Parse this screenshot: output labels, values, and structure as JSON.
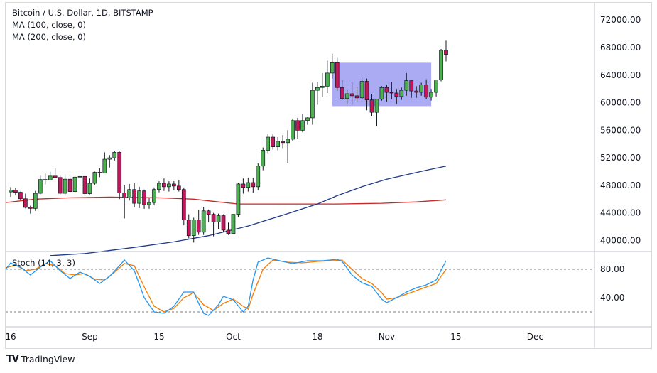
{
  "legend": {
    "title": "Bitcoin / U.S. Dollar, 1D, BITSTAMP",
    "ma100": "MA (100, close, 0)",
    "ma200": "MA (200, close, 0)"
  },
  "stoch_label": "Stoch (14, 3, 3)",
  "brand": {
    "name": "TradingView",
    "logo": "TV"
  },
  "colors": {
    "up": "#4caf50",
    "down": "#c2185b",
    "wick": "#131722",
    "ma100": "#1e3a8a",
    "ma200": "#c62828",
    "stoch_k": "#2196f3",
    "stoch_d": "#f57c00",
    "rect": "#9c9cf2"
  },
  "chart_data": {
    "type": "candlestick",
    "title": "Bitcoin / U.S. Dollar, 1D, BITSTAMP",
    "price_ticks": [
      "72000.00",
      "68000.00",
      "64000.00",
      "60000.00",
      "56000.00",
      "52000.00",
      "48000.00",
      "44000.00",
      "40000.00"
    ],
    "price_tick_values": [
      72000,
      68000,
      64000,
      60000,
      56000,
      52000,
      48000,
      44000,
      40000
    ],
    "ylim": [
      38500,
      74500
    ],
    "time_ticks": [
      {
        "label": "16",
        "day": 0
      },
      {
        "label": "Sep",
        "day": 16
      },
      {
        "label": "15",
        "day": 30
      },
      {
        "label": "Oct",
        "day": 45
      },
      {
        "label": "18",
        "day": 62
      },
      {
        "label": "Nov",
        "day": 76
      },
      {
        "label": "15",
        "day": 90
      },
      {
        "label": "Dec",
        "day": 106
      }
    ],
    "xlim": [
      -1,
      118
    ],
    "candles": [
      [
        47050,
        47750,
        46350,
        47300
      ],
      [
        47300,
        47600,
        46550,
        47000
      ],
      [
        47000,
        47100,
        45850,
        46050
      ],
      [
        46050,
        46800,
        44650,
        44800
      ],
      [
        44800,
        45050,
        43900,
        44650
      ],
      [
        44650,
        47200,
        44300,
        46850
      ],
      [
        46850,
        49400,
        46700,
        48850
      ],
      [
        48850,
        49700,
        48150,
        48800
      ],
      [
        48800,
        50000,
        48700,
        49350
      ],
      [
        49350,
        50500,
        49000,
        49150
      ],
      [
        49150,
        49500,
        46700,
        46850
      ],
      [
        46850,
        49600,
        46600,
        48900
      ],
      [
        48900,
        49400,
        46950,
        47100
      ],
      [
        47100,
        49600,
        46900,
        49200
      ],
      [
        49200,
        49800,
        48100,
        49300
      ],
      [
        49300,
        49400,
        46400,
        46800
      ],
      [
        46800,
        49000,
        46700,
        48300
      ],
      [
        48300,
        50000,
        48100,
        49900
      ],
      [
        49900,
        50500,
        49200,
        49800
      ],
      [
        49800,
        52800,
        49800,
        51800
      ],
      [
        51800,
        52400,
        50600,
        52000
      ],
      [
        52000,
        53000,
        51600,
        52800
      ],
      [
        52800,
        52900,
        46000,
        46900
      ],
      [
        46900,
        48000,
        43200,
        46200
      ],
      [
        46200,
        48200,
        45800,
        47400
      ],
      [
        47400,
        48300,
        44800,
        45400
      ],
      [
        45400,
        47800,
        44700,
        47200
      ],
      [
        47200,
        47400,
        44600,
        45200
      ],
      [
        45200,
        46200,
        44600,
        45500
      ],
      [
        45500,
        47700,
        45100,
        47400
      ],
      [
        47400,
        48600,
        47000,
        48300
      ],
      [
        48300,
        49000,
        47200,
        47800
      ],
      [
        47800,
        48600,
        47100,
        48200
      ],
      [
        48200,
        48600,
        47300,
        47900
      ],
      [
        47900,
        48800,
        47100,
        47400
      ],
      [
        47400,
        47700,
        42200,
        43000
      ],
      [
        43000,
        43800,
        40300,
        40700
      ],
      [
        40700,
        43300,
        39700,
        43000
      ],
      [
        43000,
        44400,
        40800,
        41200
      ],
      [
        41200,
        44800,
        40800,
        44300
      ],
      [
        44300,
        44500,
        42700,
        43800
      ],
      [
        43800,
        44000,
        40600,
        42700
      ],
      [
        42700,
        43900,
        41700,
        43600
      ],
      [
        43600,
        43800,
        41200,
        41500
      ],
      [
        41500,
        42600,
        40800,
        41000
      ],
      [
        41000,
        43800,
        40900,
        43800
      ],
      [
        43800,
        48400,
        43400,
        48200
      ],
      [
        48200,
        49000,
        46800,
        47700
      ],
      [
        47700,
        49100,
        47100,
        48400
      ],
      [
        48400,
        49100,
        46900,
        47800
      ],
      [
        47800,
        51200,
        47300,
        50800
      ],
      [
        50800,
        53500,
        50200,
        53100
      ],
      [
        53100,
        55500,
        52600,
        55000
      ],
      [
        55000,
        55400,
        53200,
        53600
      ],
      [
        53600,
        55000,
        53100,
        54400
      ],
      [
        54400,
        55300,
        53300,
        54200
      ],
      [
        54200,
        56000,
        51200,
        54700
      ],
      [
        54700,
        57700,
        54400,
        57400
      ],
      [
        57400,
        57800,
        54800,
        56000
      ],
      [
        56000,
        58400,
        55700,
        57400
      ],
      [
        57400,
        58000,
        56800,
        57800
      ],
      [
        57800,
        62900,
        56800,
        61800
      ],
      [
        61800,
        63000,
        59700,
        62200
      ],
      [
        62200,
        64300,
        60800,
        62400
      ],
      [
        62400,
        66100,
        61400,
        64300
      ],
      [
        64300,
        67100,
        63500,
        65900
      ],
      [
        65900,
        66600,
        61700,
        62200
      ],
      [
        62200,
        63300,
        60400,
        60600
      ],
      [
        60600,
        61800,
        59800,
        61300
      ],
      [
        61300,
        63000,
        59700,
        61000
      ],
      [
        61000,
        62300,
        60100,
        60700
      ],
      [
        60700,
        63700,
        60400,
        63100
      ],
      [
        63100,
        63500,
        58900,
        60400
      ],
      [
        60400,
        61300,
        58100,
        58600
      ],
      [
        58600,
        60500,
        56600,
        60500
      ],
      [
        60500,
        62400,
        60300,
        62200
      ],
      [
        62200,
        62600,
        60100,
        61500
      ],
      [
        61500,
        63000,
        60500,
        61400
      ],
      [
        61400,
        62000,
        59800,
        60900
      ],
      [
        60900,
        62200,
        60400,
        61800
      ],
      [
        61800,
        64300,
        61000,
        63200
      ],
      [
        63200,
        63200,
        60700,
        61700
      ],
      [
        61700,
        62400,
        60700,
        61500
      ],
      [
        61500,
        62900,
        61000,
        62600
      ],
      [
        62600,
        63400,
        60500,
        60800
      ],
      [
        60800,
        62000,
        60300,
        61500
      ],
      [
        61500,
        63300,
        60900,
        63300
      ],
      [
        63300,
        67800,
        63100,
        67600
      ],
      [
        67600,
        69000,
        66000,
        67000
      ]
    ],
    "ma100": [
      [
        8,
        37800
      ],
      [
        15,
        38100
      ],
      [
        25,
        39000
      ],
      [
        33,
        39800
      ],
      [
        40,
        40700
      ],
      [
        48,
        42100
      ],
      [
        56,
        43900
      ],
      [
        62,
        45300
      ],
      [
        66,
        46500
      ],
      [
        71,
        47800
      ],
      [
        76,
        48900
      ],
      [
        81,
        49700
      ],
      [
        84,
        50200
      ],
      [
        88,
        50800
      ]
    ],
    "ma200": [
      [
        -1,
        45500
      ],
      [
        5,
        46000
      ],
      [
        12,
        46200
      ],
      [
        20,
        46300
      ],
      [
        30,
        46200
      ],
      [
        37,
        46000
      ],
      [
        42,
        45600
      ],
      [
        46,
        45300
      ],
      [
        55,
        45300
      ],
      [
        66,
        45300
      ],
      [
        75,
        45400
      ],
      [
        82,
        45600
      ],
      [
        88,
        45900
      ]
    ],
    "rectangle": {
      "x0": 65,
      "x1": 85,
      "y0": 59500,
      "y1": 65900
    },
    "stoch": {
      "ticks": [
        "80.00",
        "40.00"
      ],
      "tick_values": [
        80,
        40
      ],
      "ylim": [
        0,
        105
      ],
      "levels": [
        80,
        20
      ],
      "k": [
        [
          -1,
          80
        ],
        [
          0,
          89
        ],
        [
          2,
          83
        ],
        [
          4,
          72
        ],
        [
          6,
          83
        ],
        [
          8,
          92
        ],
        [
          10,
          78
        ],
        [
          12,
          67
        ],
        [
          14,
          76
        ],
        [
          16,
          70
        ],
        [
          18,
          60
        ],
        [
          20,
          70
        ],
        [
          22,
          85
        ],
        [
          23,
          93
        ],
        [
          25,
          78
        ],
        [
          27,
          40
        ],
        [
          29,
          20
        ],
        [
          31,
          18
        ],
        [
          33,
          28
        ],
        [
          35,
          48
        ],
        [
          37,
          48
        ],
        [
          38,
          32
        ],
        [
          39,
          18
        ],
        [
          40,
          15
        ],
        [
          42,
          30
        ],
        [
          43,
          42
        ],
        [
          45,
          37
        ],
        [
          47,
          20
        ],
        [
          48,
          28
        ],
        [
          49,
          65
        ],
        [
          50,
          90
        ],
        [
          52,
          96
        ],
        [
          55,
          91
        ],
        [
          57,
          88
        ],
        [
          60,
          92
        ],
        [
          63,
          92
        ],
        [
          66,
          94
        ],
        [
          67,
          91
        ],
        [
          69,
          72
        ],
        [
          71,
          61
        ],
        [
          73,
          56
        ],
        [
          75,
          38
        ],
        [
          76,
          33
        ],
        [
          78,
          40
        ],
        [
          80,
          48
        ],
        [
          82,
          54
        ],
        [
          84,
          58
        ],
        [
          86,
          65
        ],
        [
          88,
          92
        ]
      ],
      "d": [
        [
          -1,
          82
        ],
        [
          1,
          86
        ],
        [
          3,
          78
        ],
        [
          5,
          80
        ],
        [
          7,
          88
        ],
        [
          9,
          85
        ],
        [
          11,
          74
        ],
        [
          13,
          72
        ],
        [
          15,
          74
        ],
        [
          17,
          66
        ],
        [
          19,
          65
        ],
        [
          21,
          76
        ],
        [
          23,
          88
        ],
        [
          25,
          85
        ],
        [
          27,
          55
        ],
        [
          29,
          28
        ],
        [
          31,
          20
        ],
        [
          33,
          25
        ],
        [
          35,
          40
        ],
        [
          37,
          47
        ],
        [
          39,
          30
        ],
        [
          41,
          22
        ],
        [
          43,
          32
        ],
        [
          45,
          38
        ],
        [
          47,
          28
        ],
        [
          48,
          24
        ],
        [
          49,
          45
        ],
        [
          51,
          80
        ],
        [
          53,
          93
        ],
        [
          56,
          90
        ],
        [
          59,
          89
        ],
        [
          62,
          91
        ],
        [
          65,
          92
        ],
        [
          67,
          93
        ],
        [
          69,
          80
        ],
        [
          71,
          67
        ],
        [
          73,
          60
        ],
        [
          75,
          47
        ],
        [
          76,
          38
        ],
        [
          78,
          40
        ],
        [
          80,
          45
        ],
        [
          82,
          50
        ],
        [
          84,
          55
        ],
        [
          86,
          60
        ],
        [
          88,
          80
        ]
      ]
    }
  }
}
